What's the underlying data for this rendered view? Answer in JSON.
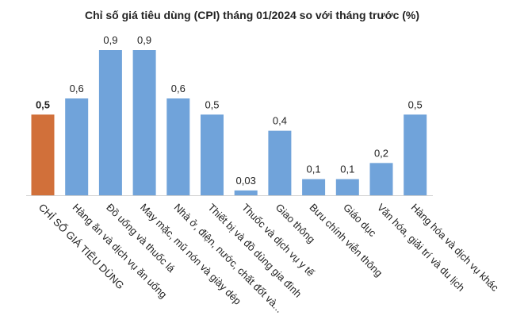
{
  "chart_data": {
    "type": "bar",
    "title": "Chỉ số giá tiêu dùng (CPI) tháng 01/2024 so với tháng trước (%)",
    "categories": [
      "CHỈ SỐ GIÁ TIÊU DÙNG",
      "Hàng ăn và dịch vụ ăn uống",
      "Đồ uống và thuốc lá",
      "May mặc, mũ nón và giày dép",
      "Nhà ở, điện, nước, chất đốt và...",
      "Thiết bị và đồ dùng gia đình",
      "Thuốc và dịch vụ y tế",
      "Giao thông",
      "Bưu chính viễn thông",
      "Giáo dục",
      "Văn hóa, giải trí và du lịch",
      "Hàng hóa và dịch vụ khác"
    ],
    "values": [
      0.5,
      0.6,
      0.9,
      0.9,
      0.6,
      0.5,
      0.03,
      0.4,
      0.1,
      0.1,
      0.2,
      0.5
    ],
    "value_labels": [
      "0,5",
      "0,6",
      "0,9",
      "0,9",
      "0,6",
      "0,5",
      "0,03",
      "0,4",
      "0,1",
      "0,1",
      "0,2",
      "0,5"
    ],
    "colors": [
      "#d1703a",
      "#70a3da",
      "#70a3da",
      "#70a3da",
      "#70a3da",
      "#70a3da",
      "#70a3da",
      "#70a3da",
      "#70a3da",
      "#70a3da",
      "#70a3da",
      "#70a3da"
    ]
  }
}
